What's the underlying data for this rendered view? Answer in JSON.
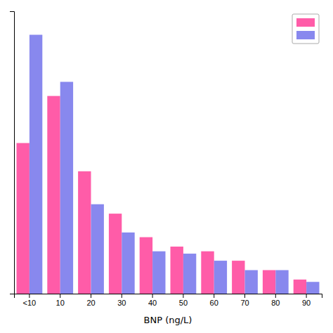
{
  "chart_data": {
    "type": "bar",
    "xlabel": "BNP (ng/L)",
    "categories": [
      "<10",
      "10",
      "20",
      "30",
      "40",
      "50",
      "60",
      "70",
      "80",
      "90"
    ],
    "series": [
      {
        "color": "#FF5CA8",
        "values": [
          32,
          42,
          26,
          17,
          12,
          10,
          9,
          7,
          5,
          3
        ]
      },
      {
        "color": "#8888EE",
        "values": [
          55,
          45,
          19,
          13,
          9,
          8.5,
          7,
          5,
          5,
          2.5
        ]
      }
    ],
    "ylim": [
      0,
      60
    ],
    "yticks": [],
    "tick_labels": "x",
    "legend": "upper right",
    "grid": false
  }
}
